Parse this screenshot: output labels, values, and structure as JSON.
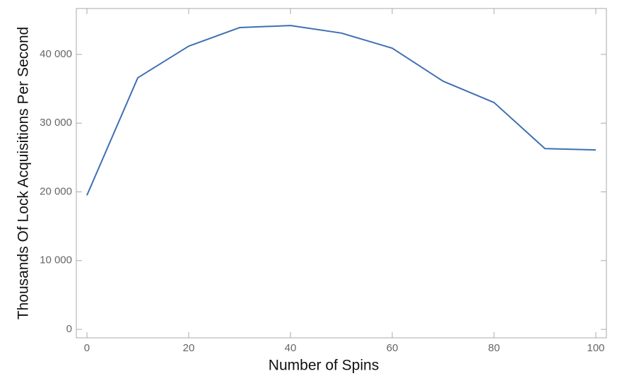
{
  "chart_data": {
    "type": "line",
    "xlabel": "Number of Spins",
    "ylabel": "Thousands Of Lock Acquisitions Per Second",
    "x": [
      0,
      10,
      20,
      30,
      40,
      50,
      60,
      70,
      80,
      90,
      100
    ],
    "series": [
      {
        "color": "#3e6fb3",
        "values": [
          19500,
          36600,
          41200,
          43900,
          44200,
          43100,
          40900,
          36100,
          33000,
          26300,
          26100
        ]
      }
    ],
    "xlim": [
      -2.08,
      102.08
    ],
    "ylim": [
      -1230,
      46680
    ],
    "xticks": [
      0,
      20,
      40,
      60,
      80,
      100
    ],
    "yticks": [
      0,
      {
        "value": 10000,
        "label": "10 000"
      },
      {
        "value": 20000,
        "label": "20 000"
      },
      {
        "value": 30000,
        "label": "30 000"
      },
      {
        "value": 40000,
        "label": "40 000"
      }
    ]
  }
}
